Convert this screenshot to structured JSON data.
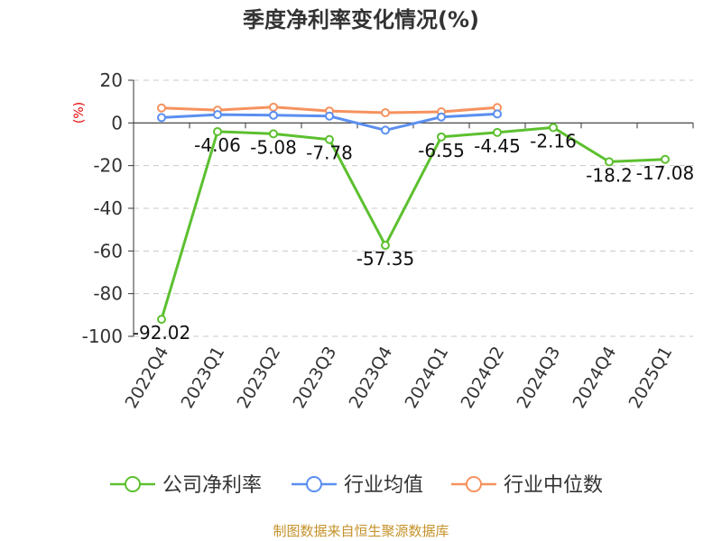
{
  "chart_data": {
    "type": "line",
    "title": "季度净利率变化情况(%)",
    "ylabel": "(%)",
    "ylim": [
      -100,
      20
    ],
    "yticks": [
      20,
      0,
      -20,
      -40,
      -60,
      -80,
      -100
    ],
    "categories": [
      "2022Q4",
      "2023Q1",
      "2023Q2",
      "2023Q3",
      "2023Q4",
      "2024Q1",
      "2024Q2",
      "2024Q3",
      "2024Q4",
      "2025Q1"
    ],
    "grid": true,
    "legend_position": "bottom",
    "series": [
      {
        "name": "公司净利率",
        "color": "#5cc02f",
        "values": [
          -92.02,
          -4.06,
          -5.08,
          -7.78,
          -57.35,
          -6.55,
          -4.45,
          -2.16,
          -18.2,
          -17.08
        ],
        "labels": [
          "-92.02",
          "-4.06",
          "-5.08",
          "-7.78",
          "-57.35",
          "-6.55",
          "-4.45",
          "-2.16",
          "-18.2",
          "-17.08"
        ]
      },
      {
        "name": "行业均值",
        "color": "#5b8ff0",
        "values": [
          2.5,
          3.9,
          3.6,
          3.2,
          -3.4,
          2.8,
          4.2,
          null,
          null,
          null
        ]
      },
      {
        "name": "行业中位数",
        "color": "#f6925f",
        "values": [
          7.0,
          6.0,
          7.4,
          5.6,
          4.8,
          5.2,
          7.2,
          null,
          null,
          null
        ]
      }
    ]
  },
  "source": "制图数据来自恒生聚源数据库"
}
